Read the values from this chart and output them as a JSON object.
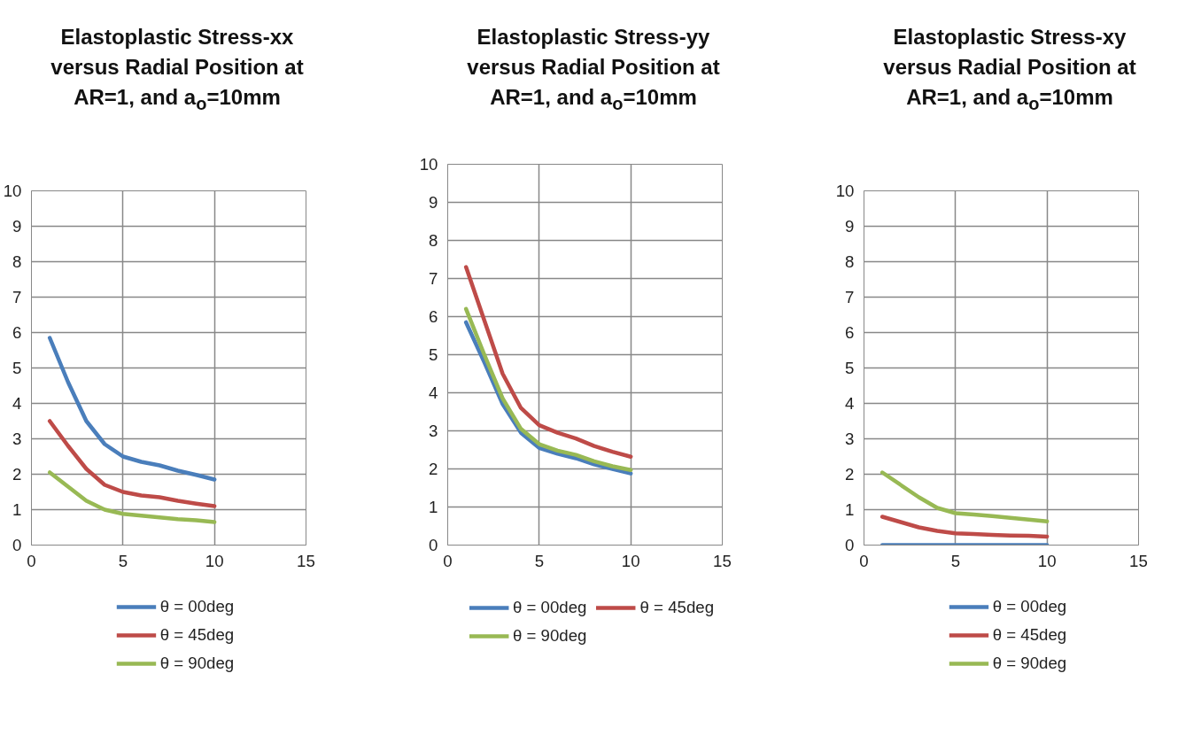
{
  "chart_data": [
    {
      "type": "line",
      "title": "Elastoplastic Stress-xx versus Radial Position at AR=1, and a$_{o}$=10mm",
      "x": [
        1,
        2,
        3,
        4,
        5,
        6,
        7,
        8,
        9,
        10
      ],
      "xlim": [
        0,
        15
      ],
      "xticks": [
        0,
        5,
        10,
        15
      ],
      "ylim": [
        0,
        10
      ],
      "yticks": [
        0,
        1,
        2,
        3,
        4,
        5,
        6,
        7,
        8,
        9,
        10
      ],
      "grid": true,
      "legend": "bottom",
      "line_style": "solid",
      "marker": "none",
      "series": [
        {
          "name": "θ = 00deg",
          "color": "#4a7ebb",
          "values": [
            5.85,
            4.6,
            3.5,
            2.85,
            2.5,
            2.35,
            2.25,
            2.1,
            1.98,
            1.85
          ]
        },
        {
          "name": "θ = 45deg",
          "color": "#be4b48",
          "values": [
            3.5,
            2.8,
            2.15,
            1.7,
            1.5,
            1.4,
            1.35,
            1.25,
            1.17,
            1.1
          ]
        },
        {
          "name": "θ = 90deg",
          "color": "#98b954",
          "values": [
            2.05,
            1.65,
            1.25,
            1.0,
            0.88,
            0.83,
            0.78,
            0.73,
            0.7,
            0.65
          ]
        }
      ]
    },
    {
      "type": "line",
      "title": "Elastoplastic Stress-yy versus Radial Position at AR=1, and a$_{o}$=10mm",
      "x": [
        1,
        2,
        3,
        4,
        5,
        6,
        7,
        8,
        9,
        10
      ],
      "xlim": [
        0,
        15
      ],
      "xticks": [
        0,
        5,
        10,
        15
      ],
      "ylim": [
        0,
        10
      ],
      "yticks": [
        0,
        1,
        2,
        3,
        4,
        5,
        6,
        7,
        8,
        9,
        10
      ],
      "grid": true,
      "legend": "bottom",
      "line_style": "solid",
      "marker": "none",
      "series": [
        {
          "name": "θ = 00deg",
          "color": "#4a7ebb",
          "values": [
            5.85,
            4.8,
            3.7,
            2.95,
            2.55,
            2.4,
            2.28,
            2.12,
            2.0,
            1.88
          ]
        },
        {
          "name": "θ = 45deg",
          "color": "#be4b48",
          "values": [
            7.3,
            5.9,
            4.5,
            3.6,
            3.15,
            2.95,
            2.8,
            2.6,
            2.45,
            2.32
          ]
        },
        {
          "name": "θ = 90deg",
          "color": "#98b954",
          "values": [
            6.2,
            5.0,
            3.85,
            3.05,
            2.65,
            2.48,
            2.37,
            2.2,
            2.07,
            1.97
          ]
        }
      ]
    },
    {
      "type": "line",
      "title": "Elastoplastic Stress-xy versus Radial Position at AR=1, and a$_{o}$=10mm",
      "x": [
        1,
        2,
        3,
        4,
        5,
        6,
        7,
        8,
        9,
        10
      ],
      "xlim": [
        0,
        15
      ],
      "xticks": [
        0,
        5,
        10,
        15
      ],
      "ylim": [
        0,
        10
      ],
      "yticks": [
        0,
        1,
        2,
        3,
        4,
        5,
        6,
        7,
        8,
        9,
        10
      ],
      "grid": true,
      "legend": "bottom",
      "line_style": "solid",
      "marker": "none",
      "series": [
        {
          "name": "θ = 00deg",
          "color": "#4a7ebb",
          "values": [
            0,
            0,
            0,
            0,
            0,
            0,
            0,
            0,
            0,
            0
          ]
        },
        {
          "name": "θ = 45deg",
          "color": "#be4b48",
          "values": [
            0.8,
            0.65,
            0.5,
            0.4,
            0.33,
            0.31,
            0.29,
            0.27,
            0.26,
            0.24
          ]
        },
        {
          "name": "θ = 90deg",
          "color": "#98b954",
          "values": [
            2.05,
            1.7,
            1.35,
            1.05,
            0.9,
            0.86,
            0.82,
            0.77,
            0.72,
            0.67
          ]
        }
      ]
    }
  ]
}
